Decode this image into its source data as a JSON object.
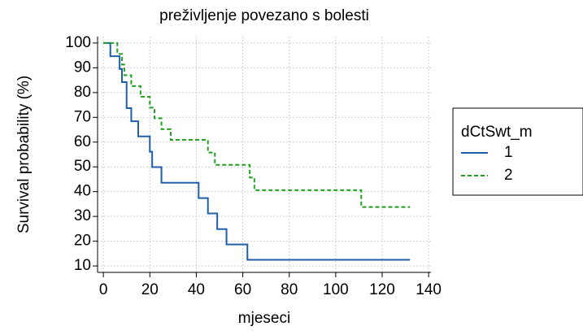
{
  "chart_data": {
    "type": "line",
    "step": true,
    "title": "preživljenje povezano s bolesti",
    "xlabel": "mjeseci",
    "ylabel": "Survival probability (%)",
    "legend_title": "dCtSwt_m",
    "legend": "right",
    "grid": true,
    "xlim": [
      -2.5,
      141
    ],
    "ylim": [
      7.4,
      102.6
    ],
    "xticks": [
      0,
      20,
      40,
      60,
      80,
      100,
      120,
      140
    ],
    "yticks": [
      10,
      20,
      30,
      40,
      50,
      60,
      70,
      80,
      90,
      100
    ],
    "series": [
      {
        "name": "1",
        "color": "#1f5fa8",
        "dash": "solid",
        "x": [
          0,
          3,
          7,
          8,
          10,
          12,
          15,
          20,
          21,
          25,
          41,
          45,
          49,
          53,
          62,
          132
        ],
        "values": [
          100,
          94.7,
          89.5,
          84.2,
          73.7,
          68.4,
          62.3,
          56.1,
          49.9,
          43.6,
          37.4,
          31.2,
          24.9,
          18.7,
          12.5,
          12.5
        ]
      },
      {
        "name": "2",
        "color": "#22a022",
        "dash": "dashed",
        "x": [
          0,
          6,
          8,
          9,
          12,
          16,
          20,
          22,
          25,
          29,
          45,
          48,
          63,
          65,
          111,
          132
        ],
        "values": [
          100,
          95.6,
          91.3,
          87,
          82.6,
          78.3,
          73.9,
          69.6,
          65.2,
          60.9,
          55.8,
          50.8,
          45.7,
          40.6,
          33.8,
          33.8
        ]
      }
    ]
  }
}
